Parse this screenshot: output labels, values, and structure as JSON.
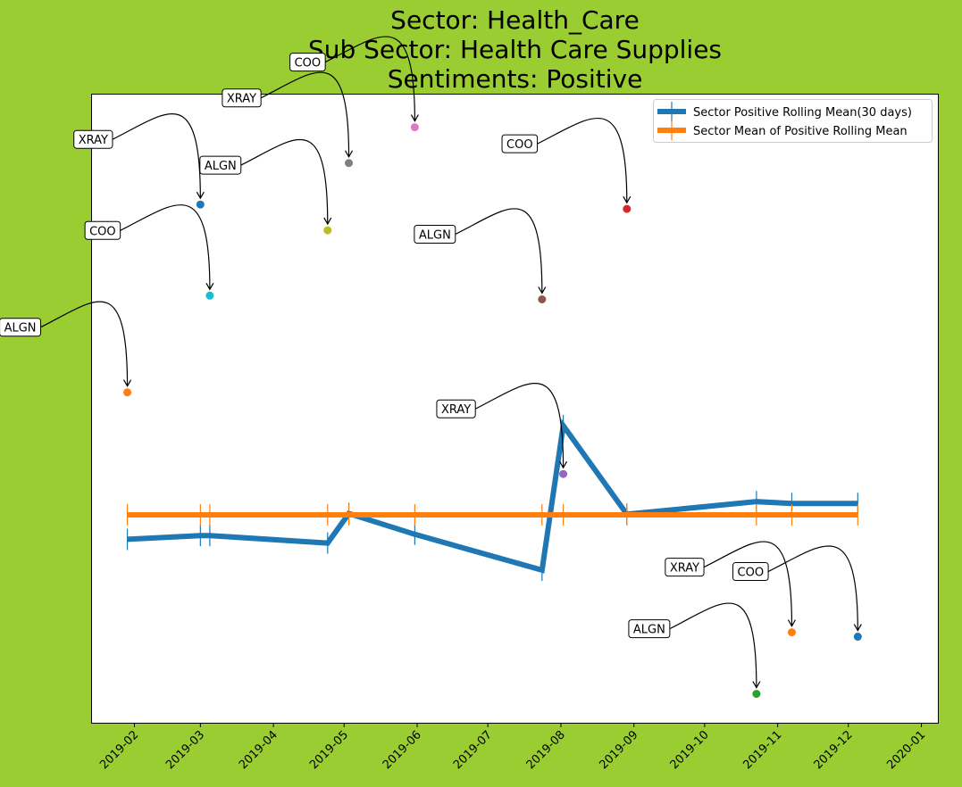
{
  "chart_data": {
    "type": "line",
    "title_lines": [
      "Sector:  Health_Care",
      "Sub Sector:  Health Care Supplies",
      "Sentiments:  Positive"
    ],
    "xlabel": "",
    "ylabel": "",
    "grid": false,
    "legend_placement": "top-right",
    "x_ticks": [
      "2019-02",
      "2019-03",
      "2019-04",
      "2019-05",
      "2019-06",
      "2019-07",
      "2019-08",
      "2019-09",
      "2019-10",
      "2019-11",
      "2019-12",
      "2020-01"
    ],
    "x_range": [
      "2019-01-14",
      "2020-01-08"
    ],
    "y_range": [
      0.0,
      1.0
    ],
    "y_tick_labels_visible": false,
    "series": [
      {
        "name": "Sector Positive Rolling Mean(30 days)",
        "color": "#1f77b4",
        "points": [
          {
            "x": "2019-01-29",
            "y": 0.292
          },
          {
            "x": "2019-03-01",
            "y": 0.298
          },
          {
            "x": "2019-03-05",
            "y": 0.298
          },
          {
            "x": "2019-04-24",
            "y": 0.286
          },
          {
            "x": "2019-05-03",
            "y": 0.333
          },
          {
            "x": "2019-05-31",
            "y": 0.3
          },
          {
            "x": "2019-07-24",
            "y": 0.243
          },
          {
            "x": "2019-08-02",
            "y": 0.473
          },
          {
            "x": "2019-08-29",
            "y": 0.332
          },
          {
            "x": "2019-10-23",
            "y": 0.352
          },
          {
            "x": "2019-11-07",
            "y": 0.349
          },
          {
            "x": "2019-12-05",
            "y": 0.349
          }
        ]
      },
      {
        "name": "Sector Mean of Positive Rolling Mean",
        "color": "#ff7f0e",
        "points": [
          {
            "x": "2019-01-29",
            "y": 0.331
          },
          {
            "x": "2019-03-01",
            "y": 0.331
          },
          {
            "x": "2019-03-05",
            "y": 0.331
          },
          {
            "x": "2019-04-24",
            "y": 0.331
          },
          {
            "x": "2019-05-03",
            "y": 0.331
          },
          {
            "x": "2019-05-31",
            "y": 0.331
          },
          {
            "x": "2019-07-24",
            "y": 0.331
          },
          {
            "x": "2019-08-02",
            "y": 0.331
          },
          {
            "x": "2019-08-29",
            "y": 0.331
          },
          {
            "x": "2019-10-23",
            "y": 0.331
          },
          {
            "x": "2019-11-07",
            "y": 0.331
          },
          {
            "x": "2019-12-05",
            "y": 0.331
          }
        ]
      }
    ],
    "annotations": [
      {
        "label": "ALGN",
        "x": "2019-01-29",
        "y": 0.526,
        "color": "#ff7f0e",
        "label_side": "far-left"
      },
      {
        "label": "XRAY",
        "x": "2019-03-01",
        "y": 0.825,
        "color": "#1f77b4",
        "label_side": "left"
      },
      {
        "label": "COO",
        "x": "2019-03-05",
        "y": 0.68,
        "color": "#17becf",
        "label_side": "left"
      },
      {
        "label": "ALGN",
        "x": "2019-04-24",
        "y": 0.784,
        "color": "#bcbd22",
        "label_side": "left"
      },
      {
        "label": "XRAY",
        "x": "2019-05-03",
        "y": 0.891,
        "color": "#7f7f7f",
        "label_side": "left"
      },
      {
        "label": "COO",
        "x": "2019-05-31",
        "y": 0.948,
        "color": "#e377c2",
        "label_side": "left"
      },
      {
        "label": "ALGN",
        "x": "2019-07-24",
        "y": 0.674,
        "color": "#8c564b",
        "label_side": "left"
      },
      {
        "label": "XRAY",
        "x": "2019-08-02",
        "y": 0.396,
        "color": "#9467bd",
        "label_side": "left"
      },
      {
        "label": "COO",
        "x": "2019-08-29",
        "y": 0.818,
        "color": "#d62728",
        "label_side": "left"
      },
      {
        "label": "ALGN",
        "x": "2019-10-23",
        "y": 0.046,
        "color": "#2ca02c",
        "label_side": "left"
      },
      {
        "label": "XRAY",
        "x": "2019-11-07",
        "y": 0.144,
        "color": "#ff7f0e",
        "label_side": "left"
      },
      {
        "label": "COO",
        "x": "2019-12-05",
        "y": 0.137,
        "color": "#1f77b4",
        "label_side": "left"
      }
    ]
  }
}
